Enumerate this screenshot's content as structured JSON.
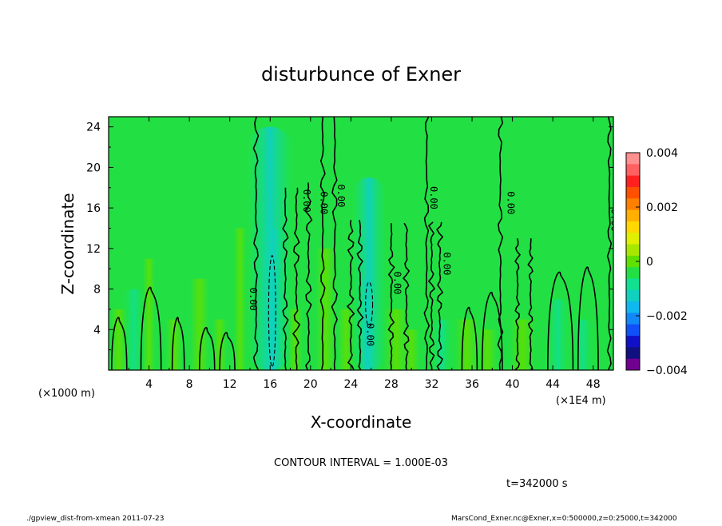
{
  "chart_data": {
    "type": "heatmap",
    "title": "disturbunce of Exner",
    "xlabel": "X-coordinate",
    "ylabel": "Z-coordinate",
    "x_unit_left": "(×1000 m)",
    "x_unit_right": "(×1E4 m)",
    "xlim": [
      0,
      50
    ],
    "ylim": [
      0,
      25
    ],
    "x_ticks": [
      "4",
      "8",
      "12",
      "16",
      "20",
      "24",
      "28",
      "32",
      "36",
      "40",
      "44",
      "48"
    ],
    "y_ticks": [
      "4",
      "8",
      "12",
      "16",
      "20",
      "24"
    ],
    "colorbar": {
      "min": -0.004,
      "max": 0.004,
      "labels": [
        "0.004",
        "0.002",
        "0",
        "−0.002",
        "−0.004"
      ],
      "colors": [
        "#ff9090",
        "#ff6060",
        "#ff2020",
        "#ff5000",
        "#ff8000",
        "#ffb000",
        "#ffd800",
        "#e0f000",
        "#a8e800",
        "#60e000",
        "#22e044",
        "#10e090",
        "#10d0c0",
        "#10b8f0",
        "#1088f8",
        "#1050f8",
        "#1010c8",
        "#101080",
        "#700090"
      ]
    },
    "contour_interval": "CONTOUR INTERVAL = 1.000E-03",
    "contour_labels": [
      {
        "text": "0.00",
        "x": 14.0,
        "y": 7.0
      },
      {
        "text": "0.00",
        "x": 19.3,
        "y": 16.7
      },
      {
        "text": "0.00",
        "x": 21.0,
        "y": 16.5
      },
      {
        "text": "0.00",
        "x": 22.7,
        "y": 17.2
      },
      {
        "text": "0.00",
        "x": 25.6,
        "y": 3.5
      },
      {
        "text": "0.00",
        "x": 28.3,
        "y": 8.6
      },
      {
        "text": "0.00",
        "x": 31.9,
        "y": 17.0
      },
      {
        "text": "0.00",
        "x": 33.2,
        "y": 10.5
      },
      {
        "text": "0.00",
        "x": 39.5,
        "y": 16.5
      },
      {
        "text": "0.00",
        "x": 49.8,
        "y": 14.8
      }
    ],
    "time_label": "t=342000 s",
    "footer_left": "./gpview_dist-from-xmean  2011-07-23",
    "footer_right": "MarsCond_Exner.nc@Exner,x=0:500000,z=0:25000,t=342000"
  }
}
